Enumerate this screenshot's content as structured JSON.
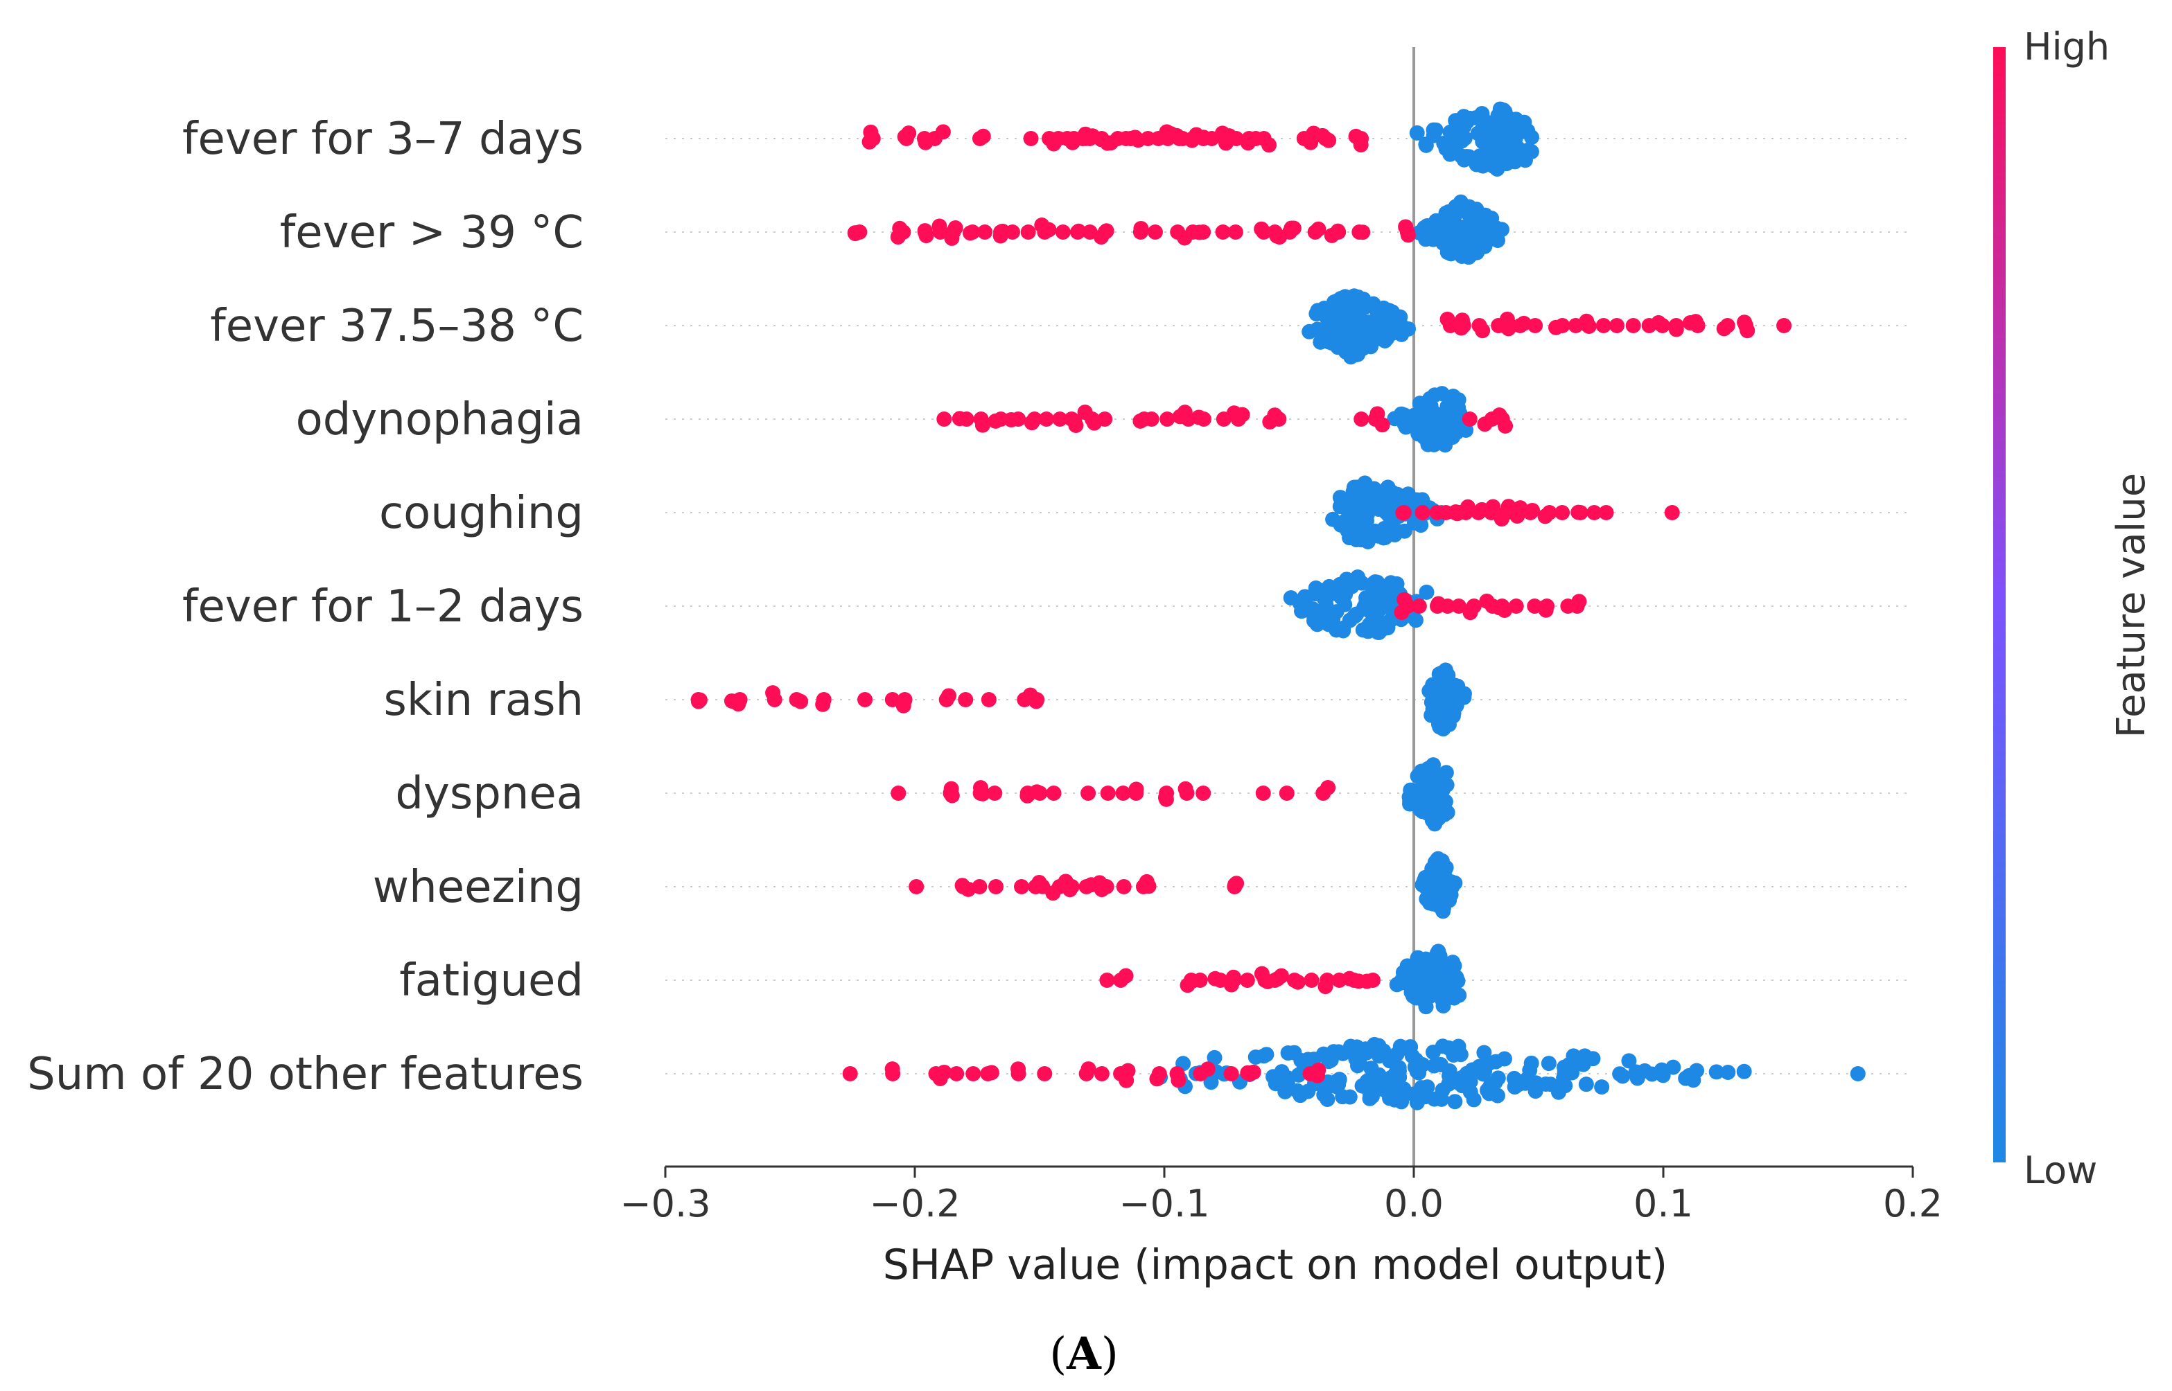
{
  "chart_data": {
    "type": "scatter",
    "subtype": "shap-beeswarm",
    "xlabel": "SHAP value (impact on model output)",
    "xlim": [
      -0.3,
      0.2
    ],
    "xticks": [
      {
        "value": -0.3,
        "label": "−0.3"
      },
      {
        "value": -0.2,
        "label": "−0.2"
      },
      {
        "value": -0.1,
        "label": "−0.1"
      },
      {
        "value": 0.0,
        "label": "0.0"
      },
      {
        "value": 0.1,
        "label": "0.1"
      },
      {
        "value": 0.2,
        "label": "0.2"
      }
    ],
    "colorbar": {
      "title": "Feature value",
      "high_label": "High",
      "low_label": "Low",
      "high_color": "#ff0d57",
      "low_color": "#1e88e5"
    },
    "caption_open": "(",
    "caption_letter": "A",
    "caption_close": ")",
    "features": [
      {
        "name": "fever for 3–7 days",
        "high": [
          -0.218,
          -0.202,
          -0.196,
          -0.19,
          -0.172,
          -0.152,
          -0.148,
          -0.144,
          -0.14,
          -0.136,
          -0.132,
          -0.128,
          -0.124,
          -0.12,
          -0.116,
          -0.112,
          -0.108,
          -0.104,
          -0.1,
          -0.096,
          -0.092,
          -0.088,
          -0.084,
          -0.08,
          -0.076,
          -0.072,
          -0.068,
          -0.064,
          -0.06,
          -0.042,
          -0.036,
          -0.022
        ],
        "low_range": [
          -0.008,
          0.055
        ],
        "low_center": 0.032,
        "low_count": 120
      },
      {
        "name": "fever > 39 °C",
        "high": [
          -0.222,
          -0.206,
          -0.196,
          -0.19,
          -0.184,
          -0.178,
          -0.172,
          -0.166,
          -0.16,
          -0.154,
          -0.148,
          -0.142,
          -0.136,
          -0.13,
          -0.124,
          -0.11,
          -0.102,
          -0.096,
          -0.09,
          -0.084,
          -0.076,
          -0.07,
          -0.062,
          -0.054,
          -0.048,
          -0.04,
          -0.032,
          -0.022,
          -0.002
        ],
        "low_range": [
          0.0,
          0.04
        ],
        "low_center": 0.02,
        "low_count": 90
      },
      {
        "name": "fever 37.5–38 °C",
        "high": [
          0.014,
          0.02,
          0.026,
          0.032,
          0.038,
          0.044,
          0.05,
          0.058,
          0.064,
          0.07,
          0.076,
          0.082,
          0.088,
          0.094,
          0.1,
          0.106,
          0.112,
          0.124,
          0.132,
          0.15
        ],
        "low_range": [
          -0.045,
          0.004
        ],
        "low_center": -0.025,
        "low_count": 160
      },
      {
        "name": "odynophagia",
        "high": [
          -0.19,
          -0.18,
          -0.174,
          -0.166,
          -0.16,
          -0.154,
          -0.148,
          -0.142,
          -0.136,
          -0.13,
          -0.124,
          -0.11,
          -0.104,
          -0.098,
          -0.092,
          -0.086,
          -0.078,
          -0.07,
          -0.056,
          -0.02,
          -0.014,
          0.024,
          0.03,
          0.036
        ],
        "low_range": [
          -0.012,
          0.026
        ],
        "low_center": 0.01,
        "low_count": 70
      },
      {
        "name": "coughing",
        "high": [
          -0.004,
          0.002,
          0.008,
          0.012,
          0.016,
          0.02,
          0.026,
          0.03,
          0.036,
          0.042,
          0.048,
          0.054,
          0.06,
          0.066,
          0.072,
          0.078,
          0.102
        ],
        "low_range": [
          -0.042,
          0.02
        ],
        "low_center": -0.018,
        "low_count": 110
      },
      {
        "name": "fever for 1–2 days",
        "high": [
          -0.004,
          0.002,
          0.008,
          0.012,
          0.018,
          0.024,
          0.03,
          0.036,
          0.042,
          0.048,
          0.054,
          0.06,
          0.066
        ],
        "low_range": [
          -0.065,
          0.01
        ],
        "low_center": -0.02,
        "low_count": 110
      },
      {
        "name": "skin rash",
        "high": [
          -0.288,
          -0.272,
          -0.256,
          -0.246,
          -0.236,
          -0.22,
          -0.21,
          -0.206,
          -0.186,
          -0.18,
          -0.172,
          -0.158,
          -0.152
        ],
        "low_range": [
          0.004,
          0.024
        ],
        "low_center": 0.012,
        "low_count": 70
      },
      {
        "name": "dyspnea",
        "high": [
          -0.208,
          -0.186,
          -0.174,
          -0.168,
          -0.156,
          -0.15,
          -0.144,
          -0.13,
          -0.124,
          -0.118,
          -0.112,
          -0.098,
          -0.09,
          -0.084,
          -0.06,
          -0.052,
          -0.036
        ],
        "low_range": [
          -0.008,
          0.018
        ],
        "low_center": 0.008,
        "low_count": 70
      },
      {
        "name": "wheezing",
        "high": [
          -0.2,
          -0.18,
          -0.174,
          -0.166,
          -0.156,
          -0.15,
          -0.144,
          -0.138,
          -0.13,
          -0.124,
          -0.116,
          -0.108,
          -0.072
        ],
        "low_range": [
          0.002,
          0.018
        ],
        "low_center": 0.01,
        "low_count": 70
      },
      {
        "name": "fatigued",
        "high": [
          -0.122,
          -0.116,
          -0.09,
          -0.084,
          -0.078,
          -0.072,
          -0.066,
          -0.06,
          -0.054,
          -0.048,
          -0.042,
          -0.036,
          -0.03,
          -0.024,
          -0.018
        ],
        "low_range": [
          -0.014,
          0.022
        ],
        "low_center": 0.008,
        "low_count": 70
      },
      {
        "name": "Sum of 20 other features",
        "high": [
          -0.225,
          -0.208,
          -0.19,
          -0.184,
          -0.178,
          -0.17,
          -0.16,
          -0.146,
          -0.13,
          -0.124,
          -0.116,
          -0.104,
          -0.094,
          -0.084,
          -0.074,
          -0.066,
          -0.04
        ],
        "low_range": [
          -0.12,
          0.16
        ],
        "low_center": -0.003,
        "low_count": 200,
        "low_extra": [
          0.178
        ]
      }
    ]
  }
}
